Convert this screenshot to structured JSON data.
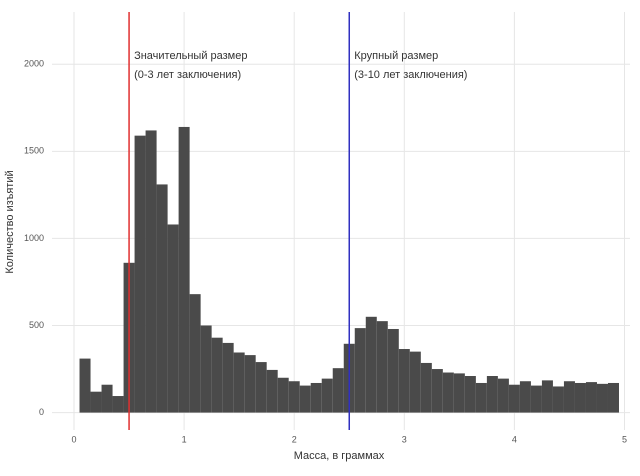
{
  "chart_data": {
    "type": "histogram",
    "x_label": "Масса, в граммах",
    "y_label": "Количество изъятий",
    "bins": [
      0.05,
      0.15,
      0.25,
      0.35,
      0.45,
      0.55,
      0.65,
      0.75,
      0.85,
      0.95,
      1.05,
      1.15,
      1.25,
      1.35,
      1.45,
      1.55,
      1.65,
      1.75,
      1.85,
      1.95,
      2.05,
      2.15,
      2.25,
      2.35,
      2.45,
      2.55,
      2.65,
      2.75,
      2.85,
      2.95,
      3.05,
      3.15,
      3.25,
      3.35,
      3.45,
      3.55,
      3.65,
      3.75,
      3.85,
      3.95,
      4.05,
      4.15,
      4.25,
      4.35,
      4.45,
      4.55,
      4.65,
      4.75,
      4.85,
      4.95
    ],
    "counts": [
      310,
      120,
      160,
      95,
      860,
      1590,
      1620,
      1310,
      1080,
      1640,
      680,
      500,
      430,
      400,
      345,
      330,
      290,
      245,
      200,
      180,
      155,
      170,
      195,
      255,
      395,
      485,
      550,
      525,
      480,
      365,
      350,
      285,
      250,
      230,
      225,
      210,
      170,
      210,
      195,
      160,
      180,
      155,
      185,
      150,
      180,
      170,
      175,
      165,
      170
    ],
    "color": "#4a4a4a",
    "xlim": [
      -0.2,
      5.05
    ],
    "ylim": [
      -100,
      2300
    ],
    "xticks": [
      0,
      1,
      2,
      3,
      4,
      5
    ],
    "yticks": [
      0,
      500,
      1000,
      1500,
      2000
    ],
    "grid": true,
    "vlines": [
      {
        "x": 0.5,
        "color": "#e03030",
        "label": [
          "Значительный размер",
          "(0-3 лет заключения)"
        ]
      },
      {
        "x": 2.5,
        "color": "#3030c0",
        "label": [
          "Крупный размер",
          "(3-10 лет заключения)"
        ]
      }
    ]
  }
}
